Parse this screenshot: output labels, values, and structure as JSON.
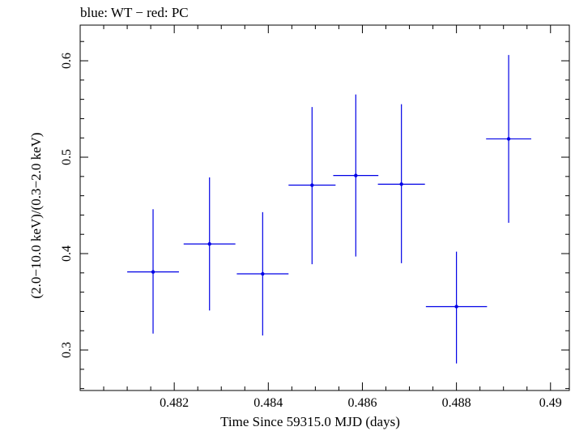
{
  "chart_data": {
    "type": "scatter",
    "title": "blue: WT − red: PC",
    "xlabel": "Time Since 59315.0 MJD (days)",
    "ylabel": "(2.0−10.0 keV)/(0.3−2.0 keV)",
    "xlim": [
      0.48,
      0.4904
    ],
    "ylim": [
      0.258,
      0.637
    ],
    "xticks": [
      0.482,
      0.484,
      0.486,
      0.488,
      0.49
    ],
    "xtick_labels": [
      "0.482",
      "0.484",
      "0.486",
      "0.488",
      "0.49"
    ],
    "yticks": [
      0.3,
      0.4,
      0.5,
      0.6
    ],
    "ytick_labels": [
      "0.3",
      "0.4",
      "0.5",
      "0.6"
    ],
    "grid": false,
    "series": [
      {
        "color": "#0000e6",
        "points": [
          {
            "x": 0.48155,
            "xerr": 0.00055,
            "y": 0.381,
            "ylo": 0.317,
            "yhi": 0.446
          },
          {
            "x": 0.48275,
            "xerr": 0.00055,
            "y": 0.41,
            "ylo": 0.341,
            "yhi": 0.479
          },
          {
            "x": 0.48388,
            "xerr": 0.00055,
            "y": 0.379,
            "ylo": 0.315,
            "yhi": 0.443
          },
          {
            "x": 0.48493,
            "xerr": 0.0005,
            "y": 0.471,
            "ylo": 0.389,
            "yhi": 0.552
          },
          {
            "x": 0.48586,
            "xerr": 0.00048,
            "y": 0.481,
            "ylo": 0.397,
            "yhi": 0.565
          },
          {
            "x": 0.48683,
            "xerr": 0.0005,
            "y": 0.472,
            "ylo": 0.39,
            "yhi": 0.555
          },
          {
            "x": 0.488,
            "xerr": 0.00065,
            "y": 0.345,
            "ylo": 0.286,
            "yhi": 0.402
          },
          {
            "x": 0.48911,
            "xerr": 0.00048,
            "y": 0.519,
            "ylo": 0.432,
            "yhi": 0.606
          }
        ]
      }
    ]
  }
}
